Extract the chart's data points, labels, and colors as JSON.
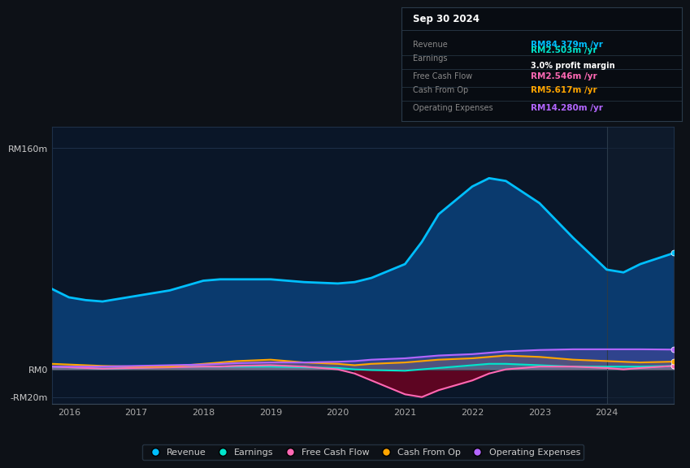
{
  "bg_color": "#0d1117",
  "plot_bg": "#0a1628",
  "title_date": "Sep 30 2024",
  "years": [
    2015.75,
    2016,
    2016.25,
    2016.5,
    2017,
    2017.5,
    2018,
    2018.25,
    2018.5,
    2019,
    2019.5,
    2020,
    2020.25,
    2020.5,
    2021,
    2021.25,
    2021.5,
    2022,
    2022.25,
    2022.5,
    2023,
    2023.5,
    2024,
    2024.25,
    2024.5,
    2025.0
  ],
  "revenue": [
    58,
    52,
    50,
    49,
    53,
    57,
    64,
    65,
    65,
    65,
    63,
    62,
    63,
    66,
    76,
    92,
    112,
    132,
    138,
    136,
    120,
    95,
    72,
    70,
    76,
    84
  ],
  "earnings": [
    2,
    1.5,
    1,
    0.5,
    1,
    2,
    2,
    2,
    2,
    2,
    1.5,
    1,
    0,
    -0.5,
    -1,
    0,
    1,
    3,
    4,
    4,
    3,
    2,
    2,
    2,
    2,
    2.5
  ],
  "free_cash_flow": [
    2,
    1.5,
    1,
    0.5,
    1,
    1.5,
    2,
    2,
    2.5,
    3,
    2,
    0,
    -3,
    -8,
    -18,
    -20,
    -15,
    -8,
    -3,
    0,
    2,
    2,
    1,
    0,
    1,
    2.5
  ],
  "cash_from_op": [
    4,
    3.5,
    3,
    2.5,
    2,
    2,
    4,
    5,
    6,
    7,
    5,
    4,
    3,
    4,
    5,
    6,
    7,
    8,
    9,
    10,
    9,
    7,
    6,
    5.5,
    5,
    5.6
  ],
  "operating_expenses": [
    2,
    2,
    2,
    2,
    2.5,
    3,
    3.5,
    4,
    4.5,
    5,
    5,
    5.5,
    6,
    7,
    8,
    9,
    10,
    11,
    12,
    13,
    14,
    14.5,
    14.5,
    14.5,
    14.5,
    14.3
  ],
  "ylim": [
    -25,
    175
  ],
  "yticks": [
    -20,
    0,
    160
  ],
  "ytick_labels": [
    "-RM20m",
    "RM0",
    "RM160m"
  ],
  "xticks": [
    2016,
    2017,
    2018,
    2019,
    2020,
    2021,
    2022,
    2023,
    2024
  ],
  "legend": [
    {
      "label": "Revenue",
      "color": "#00bfff"
    },
    {
      "label": "Earnings",
      "color": "#00e5cc"
    },
    {
      "label": "Free Cash Flow",
      "color": "#ff69b4"
    },
    {
      "label": "Cash From Op",
      "color": "#ffa500"
    },
    {
      "label": "Operating Expenses",
      "color": "#b366ff"
    }
  ],
  "revenue_fill_color": "#0a3a6e",
  "revenue_line_color": "#00bfff",
  "earnings_line_color": "#00e5cc",
  "fcf_line_color": "#ff69b4",
  "cfop_line_color": "#ffa500",
  "opex_line_color": "#b366ff",
  "info_rows": [
    {
      "label": "Revenue",
      "value": "RM84.379m /yr",
      "color": "#00bfff",
      "sub": null
    },
    {
      "label": "Earnings",
      "value": "RM2.503m /yr",
      "color": "#00e5cc",
      "sub": "3.0% profit margin"
    },
    {
      "label": "Free Cash Flow",
      "value": "RM2.546m /yr",
      "color": "#ff69b4",
      "sub": null
    },
    {
      "label": "Cash From Op",
      "value": "RM5.617m /yr",
      "color": "#ffa500",
      "sub": null
    },
    {
      "label": "Operating Expenses",
      "value": "RM14.280m /yr",
      "color": "#b366ff",
      "sub": null
    }
  ]
}
